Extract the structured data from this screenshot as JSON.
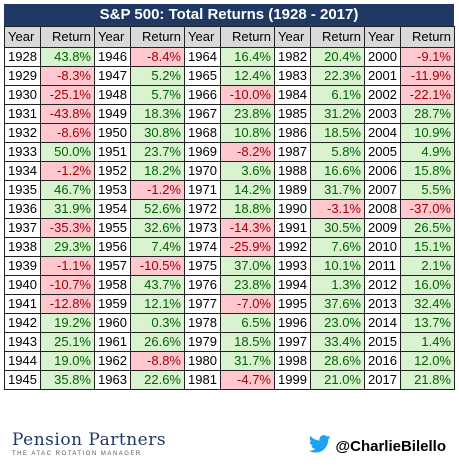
{
  "title": "S&P 500: Total Returns (1928 - 2017)",
  "headers": {
    "year": "Year",
    "return": "Return"
  },
  "columns": [
    [
      [
        "1928",
        "43.8%"
      ],
      [
        "1929",
        "-8.3%"
      ],
      [
        "1930",
        "-25.1%"
      ],
      [
        "1931",
        "-43.8%"
      ],
      [
        "1932",
        "-8.6%"
      ],
      [
        "1933",
        "50.0%"
      ],
      [
        "1934",
        "-1.2%"
      ],
      [
        "1935",
        "46.7%"
      ],
      [
        "1936",
        "31.9%"
      ],
      [
        "1937",
        "-35.3%"
      ],
      [
        "1938",
        "29.3%"
      ],
      [
        "1939",
        "-1.1%"
      ],
      [
        "1940",
        "-10.7%"
      ],
      [
        "1941",
        "-12.8%"
      ],
      [
        "1942",
        "19.2%"
      ],
      [
        "1943",
        "25.1%"
      ],
      [
        "1944",
        "19.0%"
      ],
      [
        "1945",
        "35.8%"
      ]
    ],
    [
      [
        "1946",
        "-8.4%"
      ],
      [
        "1947",
        "5.2%"
      ],
      [
        "1948",
        "5.7%"
      ],
      [
        "1949",
        "18.3%"
      ],
      [
        "1950",
        "30.8%"
      ],
      [
        "1951",
        "23.7%"
      ],
      [
        "1952",
        "18.2%"
      ],
      [
        "1953",
        "-1.2%"
      ],
      [
        "1954",
        "52.6%"
      ],
      [
        "1955",
        "32.6%"
      ],
      [
        "1956",
        "7.4%"
      ],
      [
        "1957",
        "-10.5%"
      ],
      [
        "1958",
        "43.7%"
      ],
      [
        "1959",
        "12.1%"
      ],
      [
        "1960",
        "0.3%"
      ],
      [
        "1961",
        "26.6%"
      ],
      [
        "1962",
        "-8.8%"
      ],
      [
        "1963",
        "22.6%"
      ]
    ],
    [
      [
        "1964",
        "16.4%"
      ],
      [
        "1965",
        "12.4%"
      ],
      [
        "1966",
        "-10.0%"
      ],
      [
        "1967",
        "23.8%"
      ],
      [
        "1968",
        "10.8%"
      ],
      [
        "1969",
        "-8.2%"
      ],
      [
        "1970",
        "3.6%"
      ],
      [
        "1971",
        "14.2%"
      ],
      [
        "1972",
        "18.8%"
      ],
      [
        "1973",
        "-14.3%"
      ],
      [
        "1974",
        "-25.9%"
      ],
      [
        "1975",
        "37.0%"
      ],
      [
        "1976",
        "23.8%"
      ],
      [
        "1977",
        "-7.0%"
      ],
      [
        "1978",
        "6.5%"
      ],
      [
        "1979",
        "18.5%"
      ],
      [
        "1980",
        "31.7%"
      ],
      [
        "1981",
        "-4.7%"
      ]
    ],
    [
      [
        "1982",
        "20.4%"
      ],
      [
        "1983",
        "22.3%"
      ],
      [
        "1984",
        "6.1%"
      ],
      [
        "1985",
        "31.2%"
      ],
      [
        "1986",
        "18.5%"
      ],
      [
        "1987",
        "5.8%"
      ],
      [
        "1988",
        "16.6%"
      ],
      [
        "1989",
        "31.7%"
      ],
      [
        "1990",
        "-3.1%"
      ],
      [
        "1991",
        "30.5%"
      ],
      [
        "1992",
        "7.6%"
      ],
      [
        "1993",
        "10.1%"
      ],
      [
        "1994",
        "1.3%"
      ],
      [
        "1995",
        "37.6%"
      ],
      [
        "1996",
        "23.0%"
      ],
      [
        "1997",
        "33.4%"
      ],
      [
        "1998",
        "28.6%"
      ],
      [
        "1999",
        "21.0%"
      ]
    ],
    [
      [
        "2000",
        "-9.1%"
      ],
      [
        "2001",
        "-11.9%"
      ],
      [
        "2002",
        "-22.1%"
      ],
      [
        "2003",
        "28.7%"
      ],
      [
        "2004",
        "10.9%"
      ],
      [
        "2005",
        "4.9%"
      ],
      [
        "2006",
        "15.8%"
      ],
      [
        "2007",
        "5.5%"
      ],
      [
        "2008",
        "-37.0%"
      ],
      [
        "2009",
        "26.5%"
      ],
      [
        "2010",
        "15.1%"
      ],
      [
        "2011",
        "2.1%"
      ],
      [
        "2012",
        "16.0%"
      ],
      [
        "2013",
        "32.4%"
      ],
      [
        "2014",
        "13.7%"
      ],
      [
        "2015",
        "1.4%"
      ],
      [
        "2016",
        "12.0%"
      ],
      [
        "2017",
        "21.8%"
      ]
    ]
  ],
  "colors": {
    "title_bg": "#1f3864",
    "positive_bg": "#d9f2d0",
    "positive_text": "#006100",
    "negative_bg": "#ffc7ce",
    "negative_text": "#9c0006",
    "brand": "#1f3864",
    "twitter": "#1da1f2"
  },
  "footer": {
    "brand_name": "Pension Partners",
    "brand_tagline": "THE ATAC ROTATION MANAGER",
    "handle_icon": "twitter-bird-icon",
    "handle": "@CharlieBilello"
  }
}
